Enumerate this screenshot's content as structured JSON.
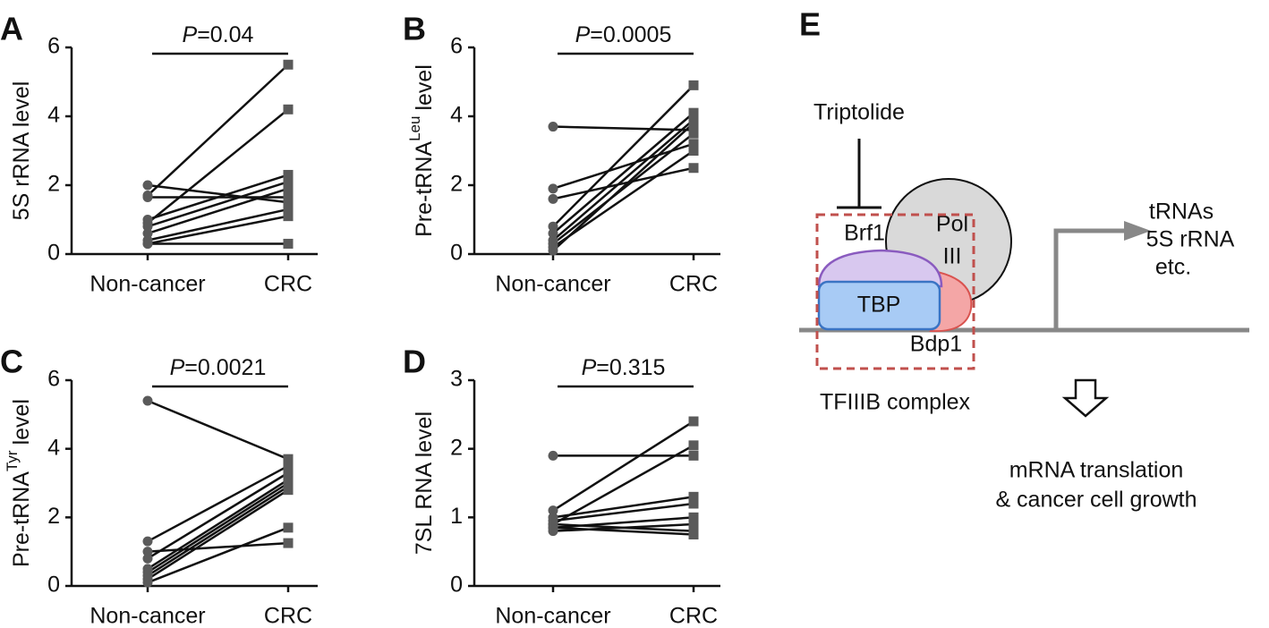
{
  "chart_data": [
    {
      "type": "paired",
      "panel": "A",
      "ylabel": "5S rRNA level",
      "categories": [
        "Non-cancer",
        "CRC"
      ],
      "p_label": "P",
      "p_value": "=0.04",
      "ylim": [
        0,
        6
      ],
      "yticks": [
        0,
        2,
        4,
        6
      ],
      "marker_color": "#5a5a5a",
      "series": [
        {
          "color": "#111111",
          "values": [
            1.7,
            5.5
          ]
        },
        {
          "color": "#111111",
          "values": [
            0.9,
            4.2
          ]
        },
        {
          "color": "#111111",
          "values": [
            1.65,
            1.65
          ]
        },
        {
          "color": "#111111",
          "values": [
            1.0,
            2.3
          ]
        },
        {
          "color": "#111111",
          "values": [
            0.8,
            2.1
          ]
        },
        {
          "color": "#111111",
          "values": [
            0.6,
            1.9
          ]
        },
        {
          "color": "#111111",
          "values": [
            2.0,
            1.5
          ]
        },
        {
          "color": "#111111",
          "values": [
            0.4,
            1.3
          ]
        },
        {
          "color": "#111111",
          "values": [
            0.3,
            1.1
          ]
        },
        {
          "color": "#111111",
          "values": [
            0.3,
            0.3
          ]
        }
      ]
    },
    {
      "type": "paired",
      "panel": "B",
      "ylabel": "Pre-tRNA",
      "ylabel_sup": "Leu",
      "ylabel_suffix": "level",
      "categories": [
        "Non-cancer",
        "CRC"
      ],
      "p_label": "P",
      "p_value": "=0.0005",
      "ylim": [
        0,
        6
      ],
      "yticks": [
        0,
        2,
        4,
        6
      ],
      "marker_color": "#5a5a5a",
      "series": [
        {
          "color": "#111111",
          "values": [
            3.7,
            3.6
          ]
        },
        {
          "color": "#111111",
          "values": [
            1.9,
            3.2
          ]
        },
        {
          "color": "#111111",
          "values": [
            1.6,
            2.5
          ]
        },
        {
          "color": "#111111",
          "values": [
            0.8,
            4.9
          ]
        },
        {
          "color": "#111111",
          "values": [
            0.6,
            4.1
          ]
        },
        {
          "color": "#111111",
          "values": [
            0.4,
            3.9
          ]
        },
        {
          "color": "#111111",
          "values": [
            0.3,
            3.5
          ]
        },
        {
          "color": "#111111",
          "values": [
            0.2,
            3.0
          ]
        },
        {
          "color": "#111111",
          "values": [
            0.1,
            3.8
          ]
        }
      ]
    },
    {
      "type": "paired",
      "panel": "C",
      "ylabel": "Pre-tRNA",
      "ylabel_sup": "Tyr",
      "ylabel_suffix": "level",
      "categories": [
        "Non-cancer",
        "CRC"
      ],
      "p_label": "P",
      "p_value": "=0.0021",
      "ylim": [
        0,
        6
      ],
      "yticks": [
        0,
        2,
        4,
        6
      ],
      "marker_color": "#5a5a5a",
      "series": [
        {
          "color": "#111111",
          "values": [
            5.4,
            3.7
          ]
        },
        {
          "color": "#111111",
          "values": [
            1.3,
            3.5
          ]
        },
        {
          "color": "#111111",
          "values": [
            1.0,
            1.25
          ]
        },
        {
          "color": "#111111",
          "values": [
            0.8,
            3.3
          ]
        },
        {
          "color": "#111111",
          "values": [
            0.5,
            3.1
          ]
        },
        {
          "color": "#111111",
          "values": [
            0.4,
            3.0
          ]
        },
        {
          "color": "#111111",
          "values": [
            0.3,
            2.9
          ]
        },
        {
          "color": "#111111",
          "values": [
            0.2,
            2.8
          ]
        },
        {
          "color": "#111111",
          "values": [
            0.1,
            1.7
          ]
        }
      ]
    },
    {
      "type": "paired",
      "panel": "D",
      "ylabel": "7SL RNA level",
      "categories": [
        "Non-cancer",
        "CRC"
      ],
      "p_label": "P",
      "p_value": "=0.315",
      "ylim": [
        0,
        3
      ],
      "yticks": [
        0,
        1,
        2,
        3
      ],
      "marker_color": "#5a5a5a",
      "series": [
        {
          "color": "#111111",
          "values": [
            1.9,
            1.9
          ]
        },
        {
          "color": "#111111",
          "values": [
            1.1,
            2.4
          ]
        },
        {
          "color": "#111111",
          "values": [
            0.9,
            2.05
          ]
        },
        {
          "color": "#111111",
          "values": [
            1.0,
            1.3
          ]
        },
        {
          "color": "#111111",
          "values": [
            0.95,
            1.2
          ]
        },
        {
          "color": "#111111",
          "values": [
            0.85,
            1.0
          ]
        },
        {
          "color": "#111111",
          "values": [
            0.8,
            0.9
          ]
        },
        {
          "color": "#111111",
          "values": [
            0.9,
            0.8
          ]
        },
        {
          "color": "#111111",
          "values": [
            0.85,
            0.75
          ]
        }
      ]
    }
  ],
  "diagram": {
    "panel": "E",
    "inhibitor": "Triptolide",
    "pol": "Pol",
    "pol_num": "III",
    "brf1": "Brf1",
    "tbp": "TBP",
    "bdp1": "Bdp1",
    "complex": "TFIIIB complex",
    "products": [
      "tRNAs",
      "5S rRNA",
      "etc."
    ],
    "outcome": [
      "mRNA translation",
      "& cancer cell growth"
    ]
  }
}
